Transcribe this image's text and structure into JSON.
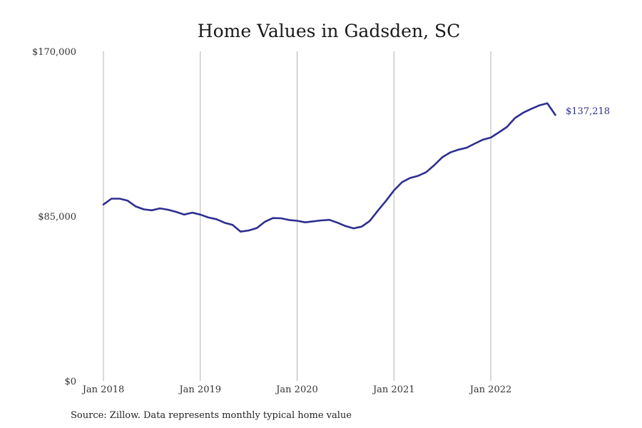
{
  "chart_data": {
    "type": "line",
    "title": "Home Values in Gadsden, SC",
    "source": "Source: Zillow. Data represents monthly typical home value",
    "ylim": [
      0,
      170000
    ],
    "y_ticks": [
      {
        "value": 0,
        "label": "$0"
      },
      {
        "value": 85000,
        "label": "$85,000"
      },
      {
        "value": 170000,
        "label": "$170,000"
      }
    ],
    "x_ticks": [
      {
        "x": "2018-01",
        "label": "Jan 2018"
      },
      {
        "x": "2019-01",
        "label": "Jan 2019"
      },
      {
        "x": "2020-01",
        "label": "Jan 2020"
      },
      {
        "x": "2021-01",
        "label": "Jan 2021"
      },
      {
        "x": "2022-01",
        "label": "Jan 2022"
      }
    ],
    "grid": {
      "vertical": true,
      "horizontal": false
    },
    "end_label": "$137,218",
    "series": [
      {
        "color": "#2e2e8f",
        "x": [
          "2018-01",
          "2018-02",
          "2018-03",
          "2018-04",
          "2018-05",
          "2018-06",
          "2018-07",
          "2018-08",
          "2018-09",
          "2018-10",
          "2018-11",
          "2018-12",
          "2019-01",
          "2019-02",
          "2019-03",
          "2019-04",
          "2019-05",
          "2019-06",
          "2019-07",
          "2019-08",
          "2019-09",
          "2019-10",
          "2019-11",
          "2019-12",
          "2020-01",
          "2020-02",
          "2020-03",
          "2020-04",
          "2020-05",
          "2020-06",
          "2020-07",
          "2020-08",
          "2020-09",
          "2020-10",
          "2020-11",
          "2020-12",
          "2021-01",
          "2021-02",
          "2021-03",
          "2021-04",
          "2021-05",
          "2021-06",
          "2021-07",
          "2021-08",
          "2021-09",
          "2021-10",
          "2021-11",
          "2021-12",
          "2022-01",
          "2022-02",
          "2022-03",
          "2022-04",
          "2022-05",
          "2022-06",
          "2022-07",
          "2022-08",
          "2022-09"
        ],
        "values": [
          91000,
          94000,
          94000,
          93000,
          90000,
          88500,
          88000,
          89000,
          88300,
          87200,
          85800,
          86800,
          85800,
          84300,
          83400,
          81600,
          80500,
          77000,
          77600,
          78800,
          82100,
          84000,
          83900,
          83000,
          82600,
          81800,
          82300,
          82800,
          83100,
          81600,
          79900,
          78700,
          79600,
          82500,
          87800,
          92800,
          98300,
          102500,
          104700,
          105800,
          107700,
          111300,
          115400,
          117900,
          119300,
          120300,
          122400,
          124400,
          125500,
          128200,
          131000,
          135600,
          138300,
          140300,
          142100,
          143200,
          137218
        ]
      }
    ]
  }
}
